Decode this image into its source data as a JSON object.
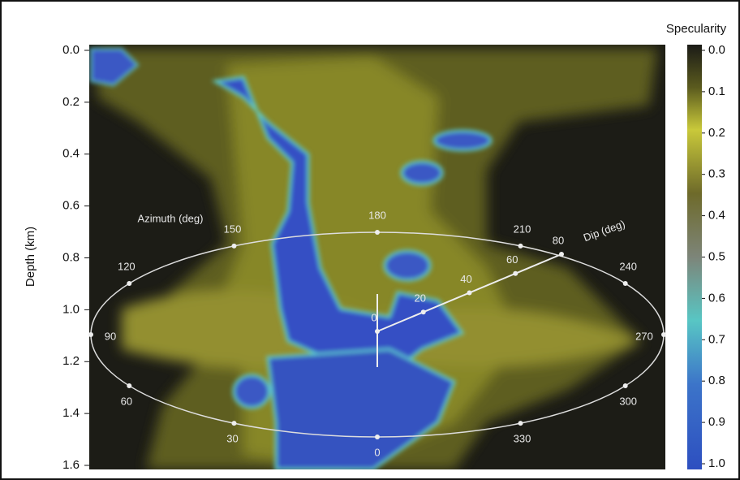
{
  "chart_data": {
    "type": "volume-render",
    "ylabel": "Depth (km)",
    "ylim": [
      0,
      1.6
    ],
    "yticks": [
      {
        "value": 0,
        "label": "0.0"
      },
      0.2,
      0.4,
      0.6,
      0.8,
      {
        "value": 1,
        "label": "1.0"
      },
      1.2,
      1.4,
      1.6
    ],
    "colorbar": {
      "title": "Specularity",
      "lim": [
        0,
        1
      ],
      "ticks": [
        {
          "value": 0,
          "label": "0.0"
        },
        0.1,
        0.2,
        0.3,
        0.4,
        0.5,
        0.6,
        0.7,
        0.8,
        0.9,
        {
          "value": 1,
          "label": "1.0"
        }
      ]
    },
    "azimuth": {
      "label": "Azimuth (deg)",
      "ticks": [
        0,
        30,
        60,
        90,
        120,
        150,
        180,
        210,
        240,
        270,
        300,
        330
      ]
    },
    "dip": {
      "label": "Dip (deg)",
      "ticks": [
        0,
        20,
        40,
        60,
        80
      ]
    }
  }
}
